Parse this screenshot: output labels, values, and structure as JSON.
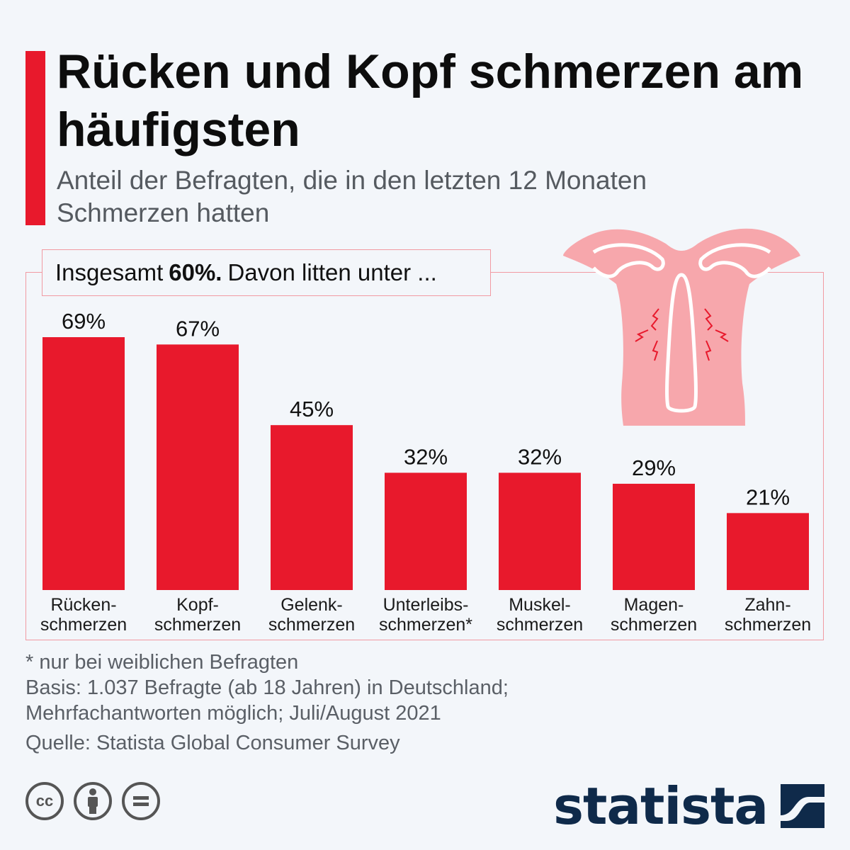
{
  "header": {
    "title": "Rücken und Kopf schmerzen am häufigsten",
    "subtitle": "Anteil der Befragten, die in den letzten 12 Monaten Schmerzen hatten"
  },
  "intro": {
    "prefix": "Insgesamt",
    "highlight": "60%.",
    "suffix": "Davon litten unter ..."
  },
  "chart_data": {
    "type": "bar",
    "categories": [
      [
        "Rücken-",
        "schmerzen"
      ],
      [
        "Kopf-",
        "schmerzen"
      ],
      [
        "Gelenk-",
        "schmerzen"
      ],
      [
        "Unterleibs-",
        "schmerzen*"
      ],
      [
        "Muskel-",
        "schmerzen"
      ],
      [
        "Magen-",
        "schmerzen"
      ],
      [
        "Zahn-",
        "schmerzen"
      ]
    ],
    "values": [
      69,
      67,
      45,
      32,
      32,
      29,
      21
    ],
    "value_labels": [
      "69%",
      "67%",
      "45%",
      "32%",
      "32%",
      "29%",
      "21%"
    ],
    "unit": "%",
    "ylim": [
      0,
      69
    ],
    "bar_color": "#e8192c",
    "grid": false
  },
  "footer": {
    "note": "*  nur bei weiblichen Befragten",
    "basis_line1": "Basis: 1.037 Befragte (ab 18 Jahren) in Deutschland;",
    "basis_line2": "Mehrfachantworten möglich; Juli/August 2021",
    "source": "Quelle: Statista Global Consumer Survey"
  },
  "license_icons": [
    "creative-commons-icon",
    "attribution-icon",
    "no-derivatives-icon"
  ],
  "brand": {
    "name": "statista",
    "color": "#0f2a4a"
  },
  "colors": {
    "accent": "#e8192c",
    "frame": "#f19aa2",
    "illustration": "#f7a7ac"
  }
}
